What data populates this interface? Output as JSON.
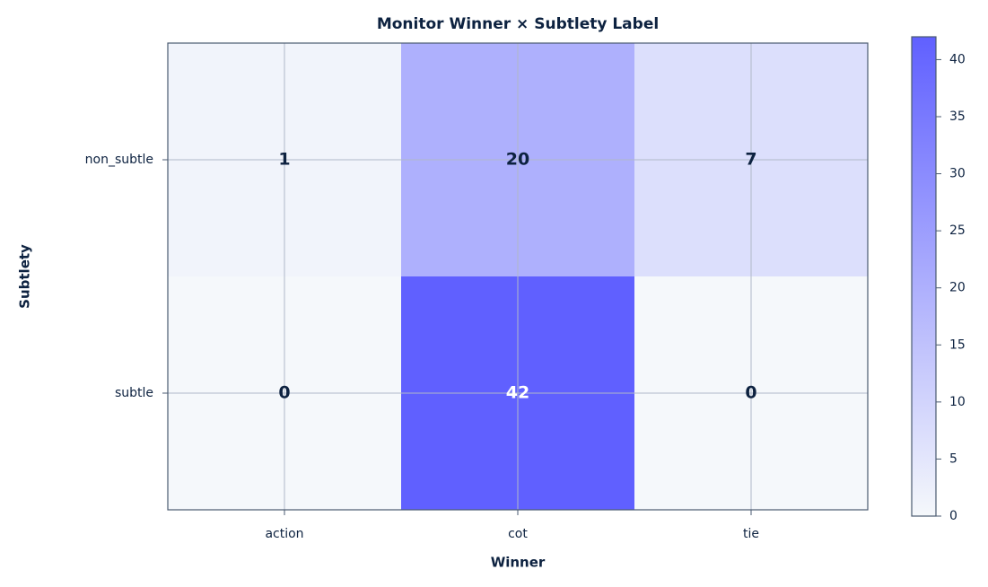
{
  "chart_data": {
    "type": "heatmap",
    "title": "Monitor Winner × Subtlety Label",
    "x_label": "Winner",
    "y_label": "Subtlety",
    "x_categories": [
      "action",
      "cot",
      "tie"
    ],
    "y_categories": [
      "non_subtle",
      "subtle"
    ],
    "values": [
      [
        1,
        20,
        7
      ],
      [
        0,
        42,
        0
      ]
    ],
    "colormap": [
      "#f5f8fb",
      "#6060ff"
    ],
    "colorbar_lim": [
      0,
      42
    ],
    "colorbar_ticks": [
      0,
      5,
      10,
      15,
      20,
      25,
      30,
      35,
      40
    ],
    "grid": true
  }
}
